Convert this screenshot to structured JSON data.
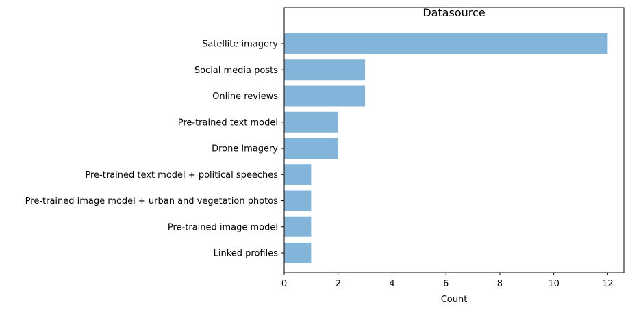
{
  "chart_data": {
    "type": "bar",
    "orientation": "horizontal",
    "title": "Datasource",
    "xlabel": "Count",
    "ylabel": "",
    "xlim": [
      0,
      12.6
    ],
    "xticks": [
      0,
      2,
      4,
      6,
      8,
      10,
      12
    ],
    "bar_color": "#83b4d9",
    "grid": false,
    "categories": [
      "Satellite imagery",
      "Social media posts",
      "Online reviews",
      "Pre-trained text model",
      "Drone imagery",
      "Pre-trained text model + political speeches",
      "Pre-trained image model + urban and vegetation photos",
      "Pre-trained image model",
      "Linked profiles"
    ],
    "values": [
      12,
      3,
      3,
      2,
      2,
      1,
      1,
      1,
      1
    ]
  }
}
